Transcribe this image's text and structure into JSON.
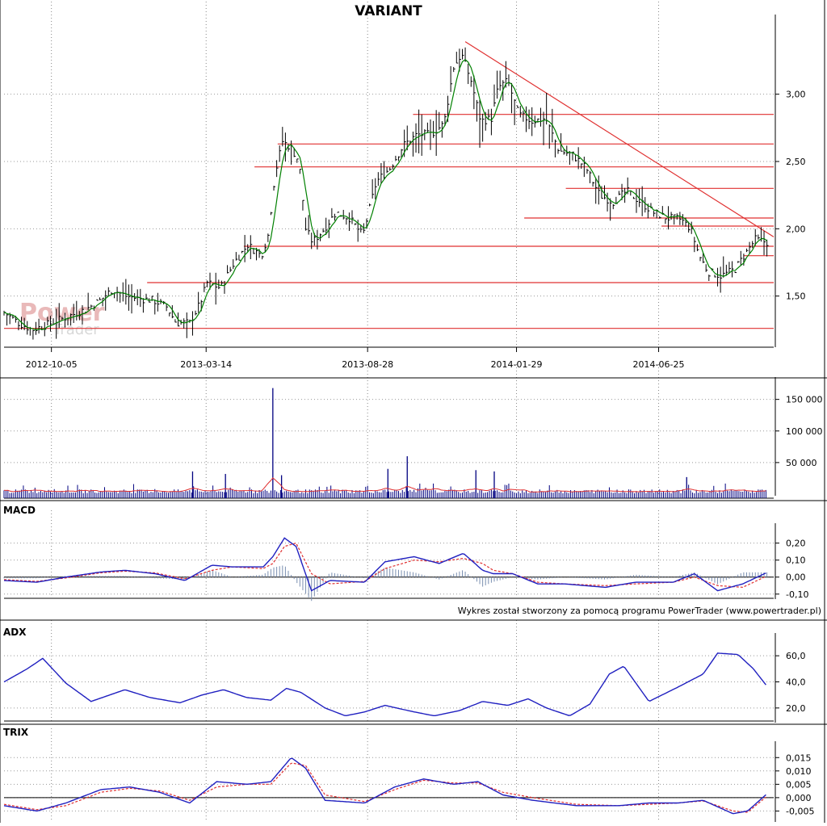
{
  "title": "VARIANT",
  "watermark": {
    "line1": "Power",
    "line2": "Trader"
  },
  "credit": "Wykres został stworzony za pomocą programu PowerTrader (www.powertrader.pl)",
  "colors": {
    "price_bar": "#000000",
    "ma": "#008000",
    "levels": "#e03030",
    "volume": "#000080",
    "volume_ma": "#e03030",
    "macd": "#2020c0",
    "signal": "#e03030",
    "hist": "#7a8fb0",
    "adx": "#2020c0",
    "trix": "#2020c0",
    "trix_signal": "#e03030"
  },
  "chart_data": [
    {
      "type": "ohlc",
      "panel": "price",
      "x_labels": [
        "2012-10-05",
        "2013-03-14",
        "2013-08-28",
        "2014-01-29",
        "2014-06-25"
      ],
      "x_range": [
        "2012-08-17",
        "2014-10-22"
      ],
      "y_ticks": [
        "1,50",
        "2,00",
        "2,50",
        "3,00"
      ],
      "y_tick_values": [
        1.5,
        2.0,
        2.5,
        3.0
      ],
      "ylim": [
        1.12,
        3.52
      ],
      "close": [
        [
          "2012-08-17",
          1.38
        ],
        [
          "2012-09-01",
          1.3
        ],
        [
          "2012-09-15",
          1.25
        ],
        [
          "2012-09-28",
          1.28
        ],
        [
          "2012-10-12",
          1.32
        ],
        [
          "2012-10-26",
          1.36
        ],
        [
          "2012-11-09",
          1.4
        ],
        [
          "2012-11-23",
          1.46
        ],
        [
          "2012-12-07",
          1.55
        ],
        [
          "2012-12-21",
          1.5
        ],
        [
          "2013-01-04",
          1.48
        ],
        [
          "2013-01-18",
          1.47
        ],
        [
          "2013-02-01",
          1.42
        ],
        [
          "2013-02-11",
          1.3
        ],
        [
          "2013-02-25",
          1.3
        ],
        [
          "2013-03-08",
          1.45
        ],
        [
          "2013-03-15",
          1.6
        ],
        [
          "2013-03-29",
          1.56
        ],
        [
          "2013-04-12",
          1.75
        ],
        [
          "2013-04-26",
          1.88
        ],
        [
          "2013-05-10",
          1.8
        ],
        [
          "2013-05-17",
          1.95
        ],
        [
          "2013-05-24",
          2.4
        ],
        [
          "2013-06-01",
          2.65
        ],
        [
          "2013-06-10",
          2.6
        ],
        [
          "2013-06-18",
          2.5
        ],
        [
          "2013-06-25",
          2.0
        ],
        [
          "2013-07-02",
          1.9
        ],
        [
          "2013-07-12",
          1.98
        ],
        [
          "2013-07-26",
          2.12
        ],
        [
          "2013-08-09",
          2.08
        ],
        [
          "2013-08-23",
          1.95
        ],
        [
          "2013-09-06",
          2.35
        ],
        [
          "2013-09-20",
          2.45
        ],
        [
          "2013-10-04",
          2.62
        ],
        [
          "2013-10-18",
          2.7
        ],
        [
          "2013-11-01",
          2.7
        ],
        [
          "2013-11-15",
          2.78
        ],
        [
          "2013-11-25",
          3.2
        ],
        [
          "2013-12-03",
          3.3
        ],
        [
          "2013-12-13",
          3.1
        ],
        [
          "2013-12-23",
          2.8
        ],
        [
          "2014-01-03",
          2.82
        ],
        [
          "2014-01-10",
          3.05
        ],
        [
          "2014-01-20",
          3.1
        ],
        [
          "2014-01-31",
          2.85
        ],
        [
          "2014-02-14",
          2.8
        ],
        [
          "2014-02-28",
          2.82
        ],
        [
          "2014-03-14",
          2.58
        ],
        [
          "2014-03-28",
          2.55
        ],
        [
          "2014-04-11",
          2.45
        ],
        [
          "2014-04-25",
          2.25
        ],
        [
          "2014-05-09",
          2.2
        ],
        [
          "2014-05-23",
          2.28
        ],
        [
          "2014-06-06",
          2.2
        ],
        [
          "2014-06-20",
          2.12
        ],
        [
          "2014-07-04",
          2.08
        ],
        [
          "2014-07-18",
          2.07
        ],
        [
          "2014-07-28",
          2.0
        ],
        [
          "2014-08-06",
          1.8
        ],
        [
          "2014-08-15",
          1.68
        ],
        [
          "2014-08-29",
          1.65
        ],
        [
          "2014-09-12",
          1.7
        ],
        [
          "2014-09-26",
          1.85
        ],
        [
          "2014-10-03",
          1.92
        ],
        [
          "2014-10-15",
          1.9
        ]
      ],
      "horizontal_levels": [
        {
          "from": "2012-08-17",
          "value": 1.26
        },
        {
          "from": "2013-01-12",
          "value": 1.6
        },
        {
          "from": "2013-04-22",
          "value": 1.87
        },
        {
          "from": "2013-05-27",
          "value": 2.63
        },
        {
          "from": "2013-05-03",
          "value": 2.46
        },
        {
          "from": "2013-10-14",
          "value": 2.85
        },
        {
          "from": "2014-03-21",
          "value": 2.3
        },
        {
          "from": "2014-02-06",
          "value": 2.08
        },
        {
          "from": "2014-06-28",
          "value": 2.02
        },
        {
          "from": "2014-09-21",
          "value": 1.8
        }
      ],
      "trendline": {
        "from": [
          "2013-12-07",
          3.39
        ],
        "to": [
          "2014-10-22",
          1.94
        ]
      }
    },
    {
      "type": "bar",
      "panel": "volume",
      "y_ticks": [
        "50 000",
        "100 000",
        "150 000"
      ],
      "y_tick_values": [
        50000,
        100000,
        150000
      ],
      "ylim": [
        0,
        170000
      ],
      "spikes": [
        [
          "2013-05-22",
          168000
        ],
        [
          "2013-10-08",
          60000
        ],
        [
          "2013-09-18",
          40000
        ],
        [
          "2013-04-03",
          32000
        ],
        [
          "2013-02-28",
          36000
        ],
        [
          "2014-01-06",
          36000
        ],
        [
          "2013-12-18",
          38000
        ],
        [
          "2013-05-31",
          30000
        ],
        [
          "2014-07-24",
          27000
        ]
      ]
    },
    {
      "type": "line",
      "panel": "macd",
      "label": "MACD",
      "y_ticks": [
        "-0,10",
        "0,00",
        "0,10",
        "0,20"
      ],
      "y_tick_values": [
        -0.1,
        0.0,
        0.1,
        0.2
      ],
      "ylim": [
        -0.12,
        0.26
      ],
      "macd": [
        [
          "2012-08-17",
          -0.02
        ],
        [
          "2012-09-20",
          -0.03
        ],
        [
          "2012-10-20",
          0.0
        ],
        [
          "2012-11-25",
          0.03
        ],
        [
          "2012-12-20",
          0.04
        ],
        [
          "2013-01-20",
          0.02
        ],
        [
          "2013-02-20",
          -0.02
        ],
        [
          "2013-03-20",
          0.07
        ],
        [
          "2013-04-10",
          0.06
        ],
        [
          "2013-05-12",
          0.06
        ],
        [
          "2013-05-22",
          0.12
        ],
        [
          "2013-06-03",
          0.23
        ],
        [
          "2013-06-15",
          0.18
        ],
        [
          "2013-07-01",
          -0.08
        ],
        [
          "2013-07-20",
          -0.02
        ],
        [
          "2013-08-25",
          -0.03
        ],
        [
          "2013-09-15",
          0.09
        ],
        [
          "2013-10-15",
          0.12
        ],
        [
          "2013-11-10",
          0.08
        ],
        [
          "2013-12-05",
          0.14
        ],
        [
          "2013-12-25",
          0.04
        ],
        [
          "2014-01-05",
          0.02
        ],
        [
          "2014-01-25",
          0.02
        ],
        [
          "2014-02-20",
          -0.04
        ],
        [
          "2014-03-20",
          -0.04
        ],
        [
          "2014-05-01",
          -0.06
        ],
        [
          "2014-06-01",
          -0.03
        ],
        [
          "2014-07-10",
          -0.03
        ],
        [
          "2014-08-01",
          0.02
        ],
        [
          "2014-08-25",
          -0.08
        ],
        [
          "2014-09-20",
          -0.04
        ],
        [
          "2014-10-20",
          0.04
        ]
      ],
      "signal": [
        [
          "2012-08-17",
          -0.015
        ],
        [
          "2012-09-20",
          -0.025
        ],
        [
          "2012-10-20",
          -0.005
        ],
        [
          "2012-11-25",
          0.025
        ],
        [
          "2012-12-20",
          0.035
        ],
        [
          "2013-01-20",
          0.025
        ],
        [
          "2013-02-20",
          -0.01
        ],
        [
          "2013-03-20",
          0.04
        ],
        [
          "2013-04-10",
          0.06
        ],
        [
          "2013-05-12",
          0.05
        ],
        [
          "2013-05-22",
          0.08
        ],
        [
          "2013-06-03",
          0.18
        ],
        [
          "2013-06-15",
          0.2
        ],
        [
          "2013-07-01",
          0.02
        ],
        [
          "2013-07-20",
          -0.04
        ],
        [
          "2013-08-25",
          -0.025
        ],
        [
          "2013-09-15",
          0.05
        ],
        [
          "2013-10-15",
          0.1
        ],
        [
          "2013-11-10",
          0.09
        ],
        [
          "2013-12-05",
          0.11
        ],
        [
          "2013-12-25",
          0.08
        ],
        [
          "2014-01-05",
          0.04
        ],
        [
          "2014-01-25",
          0.02
        ],
        [
          "2014-02-20",
          -0.03
        ],
        [
          "2014-03-20",
          -0.04
        ],
        [
          "2014-05-01",
          -0.05
        ],
        [
          "2014-06-01",
          -0.04
        ],
        [
          "2014-07-10",
          -0.03
        ],
        [
          "2014-08-01",
          0.0
        ],
        [
          "2014-08-25",
          -0.05
        ],
        [
          "2014-09-20",
          -0.06
        ],
        [
          "2014-10-20",
          0.02
        ]
      ]
    },
    {
      "type": "line",
      "panel": "adx",
      "label": "ADX",
      "y_ticks": [
        "20,0",
        "40,0",
        "60,0"
      ],
      "y_tick_values": [
        20,
        40,
        60
      ],
      "ylim": [
        10,
        70
      ],
      "values": [
        [
          "2012-08-17",
          40
        ],
        [
          "2012-09-10",
          50
        ],
        [
          "2012-09-26",
          58
        ],
        [
          "2012-10-20",
          39
        ],
        [
          "2012-11-15",
          25
        ],
        [
          "2012-12-20",
          34
        ],
        [
          "2013-01-15",
          28
        ],
        [
          "2013-02-15",
          24
        ],
        [
          "2013-03-10",
          30
        ],
        [
          "2013-04-01",
          34
        ],
        [
          "2013-04-25",
          28
        ],
        [
          "2013-05-20",
          26
        ],
        [
          "2013-06-05",
          35
        ],
        [
          "2013-06-20",
          32
        ],
        [
          "2013-07-15",
          20
        ],
        [
          "2013-08-05",
          14
        ],
        [
          "2013-08-25",
          17
        ],
        [
          "2013-09-15",
          22
        ],
        [
          "2013-10-15",
          17
        ],
        [
          "2013-11-05",
          14
        ],
        [
          "2013-12-01",
          18
        ],
        [
          "2013-12-25",
          25
        ],
        [
          "2014-01-20",
          22
        ],
        [
          "2014-02-10",
          27
        ],
        [
          "2014-03-01",
          20
        ],
        [
          "2014-03-25",
          14
        ],
        [
          "2014-04-15",
          23
        ],
        [
          "2014-05-05",
          46
        ],
        [
          "2014-05-20",
          52
        ],
        [
          "2014-06-15",
          25
        ],
        [
          "2014-07-15",
          36
        ],
        [
          "2014-08-10",
          46
        ],
        [
          "2014-08-25",
          62
        ],
        [
          "2014-09-15",
          61
        ],
        [
          "2014-10-01",
          50
        ],
        [
          "2014-10-20",
          32
        ]
      ]
    },
    {
      "type": "line",
      "panel": "trix",
      "label": "TRIX",
      "y_ticks": [
        "-0,005",
        "0,000",
        "0,005",
        "0,010",
        "0,015"
      ],
      "y_tick_values": [
        -0.005,
        0.0,
        0.005,
        0.01,
        0.015
      ],
      "ylim": [
        -0.0085,
        0.0175
      ],
      "trix": [
        [
          "2012-08-17",
          -0.003
        ],
        [
          "2012-09-20",
          -0.005
        ],
        [
          "2012-10-20",
          -0.002
        ],
        [
          "2012-11-25",
          0.003
        ],
        [
          "2012-12-25",
          0.004
        ],
        [
          "2013-01-25",
          0.002
        ],
        [
          "2013-02-25",
          -0.002
        ],
        [
          "2013-03-25",
          0.006
        ],
        [
          "2013-04-25",
          0.005
        ],
        [
          "2013-05-20",
          0.006
        ],
        [
          "2013-06-10",
          0.015
        ],
        [
          "2013-06-25",
          0.011
        ],
        [
          "2013-07-15",
          -0.001
        ],
        [
          "2013-08-25",
          -0.002
        ],
        [
          "2013-09-25",
          0.004
        ],
        [
          "2013-10-25",
          0.007
        ],
        [
          "2013-11-25",
          0.005
        ],
        [
          "2013-12-20",
          0.006
        ],
        [
          "2014-01-15",
          0.001
        ],
        [
          "2014-02-15",
          -0.001
        ],
        [
          "2014-04-01",
          -0.003
        ],
        [
          "2014-05-15",
          -0.003
        ],
        [
          "2014-06-15",
          -0.002
        ],
        [
          "2014-07-15",
          -0.002
        ],
        [
          "2014-08-10",
          -0.001
        ],
        [
          "2014-09-10",
          -0.006
        ],
        [
          "2014-09-25",
          -0.005
        ],
        [
          "2014-10-20",
          0.003
        ]
      ],
      "signal": [
        [
          "2012-08-17",
          -0.0025
        ],
        [
          "2012-09-20",
          -0.0045
        ],
        [
          "2012-10-20",
          -0.003
        ],
        [
          "2012-11-25",
          0.002
        ],
        [
          "2012-12-25",
          0.0035
        ],
        [
          "2013-01-25",
          0.0025
        ],
        [
          "2013-02-25",
          -0.001
        ],
        [
          "2013-03-25",
          0.004
        ],
        [
          "2013-04-25",
          0.005
        ],
        [
          "2013-05-20",
          0.005
        ],
        [
          "2013-06-10",
          0.013
        ],
        [
          "2013-06-25",
          0.012
        ],
        [
          "2013-07-15",
          0.001
        ],
        [
          "2013-08-25",
          -0.0015
        ],
        [
          "2013-09-25",
          0.003
        ],
        [
          "2013-10-25",
          0.0065
        ],
        [
          "2013-11-25",
          0.0055
        ],
        [
          "2013-12-20",
          0.0055
        ],
        [
          "2014-01-15",
          0.002
        ],
        [
          "2014-02-15",
          0.0
        ],
        [
          "2014-04-01",
          -0.0025
        ],
        [
          "2014-05-15",
          -0.003
        ],
        [
          "2014-06-15",
          -0.0025
        ],
        [
          "2014-07-15",
          -0.002
        ],
        [
          "2014-08-10",
          -0.0012
        ],
        [
          "2014-09-10",
          -0.005
        ],
        [
          "2014-09-25",
          -0.0055
        ],
        [
          "2014-10-20",
          0.002
        ]
      ]
    }
  ]
}
